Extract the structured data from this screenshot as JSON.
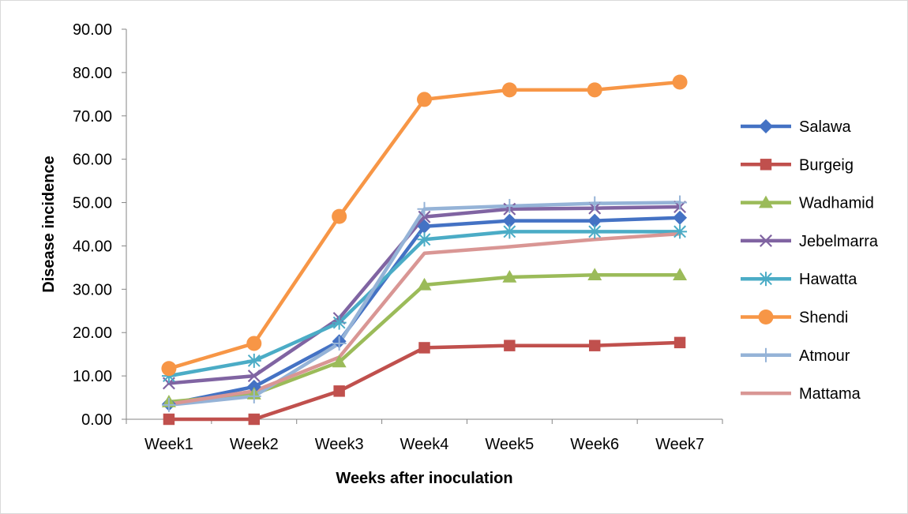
{
  "chart_data": {
    "type": "line",
    "title": "",
    "xlabel": "Weeks after inoculation",
    "ylabel": "Disease incidence",
    "categories": [
      "Week1",
      "Week2",
      "Week3",
      "Week4",
      "Week5",
      "Week6",
      "Week7"
    ],
    "ylim": [
      0,
      90
    ],
    "yticks": [
      "0.00",
      "10.00",
      "20.00",
      "30.00",
      "40.00",
      "50.00",
      "60.00",
      "70.00",
      "80.00",
      "90.00"
    ],
    "grid": false,
    "legend_position": "right",
    "series": [
      {
        "name": "Salawa",
        "color": "#4472C4",
        "marker": "diamond",
        "values": [
          3.5,
          7.5,
          18.0,
          44.5,
          45.8,
          45.8,
          46.5
        ]
      },
      {
        "name": "Burgeig",
        "color": "#C0504D",
        "marker": "square",
        "values": [
          0.0,
          0.0,
          6.5,
          16.5,
          17.0,
          17.0,
          17.7
        ]
      },
      {
        "name": "Wadhamid",
        "color": "#9BBB59",
        "marker": "triangle",
        "values": [
          4.0,
          5.8,
          13.2,
          31.0,
          32.8,
          33.3,
          33.3
        ]
      },
      {
        "name": "Jebelmarra",
        "color": "#8064A2",
        "marker": "x",
        "values": [
          8.3,
          10.0,
          23.3,
          46.7,
          48.5,
          48.7,
          49.0
        ]
      },
      {
        "name": "Hawatta",
        "color": "#4BACC6",
        "marker": "asterisk",
        "values": [
          10.0,
          13.5,
          22.3,
          41.5,
          43.3,
          43.3,
          43.3
        ]
      },
      {
        "name": "Shendi",
        "color": "#F79646",
        "marker": "circle",
        "values": [
          11.7,
          17.5,
          46.8,
          73.8,
          76.0,
          76.0,
          77.8
        ]
      },
      {
        "name": "Atmour",
        "color": "#95B3D7",
        "marker": "plus",
        "values": [
          3.3,
          5.3,
          17.5,
          48.5,
          49.2,
          49.8,
          50.0
        ]
      },
      {
        "name": "Mattama",
        "color": "#D99694",
        "marker": "none",
        "values": [
          3.5,
          6.5,
          14.3,
          38.3,
          39.8,
          41.5,
          42.8
        ]
      }
    ]
  }
}
